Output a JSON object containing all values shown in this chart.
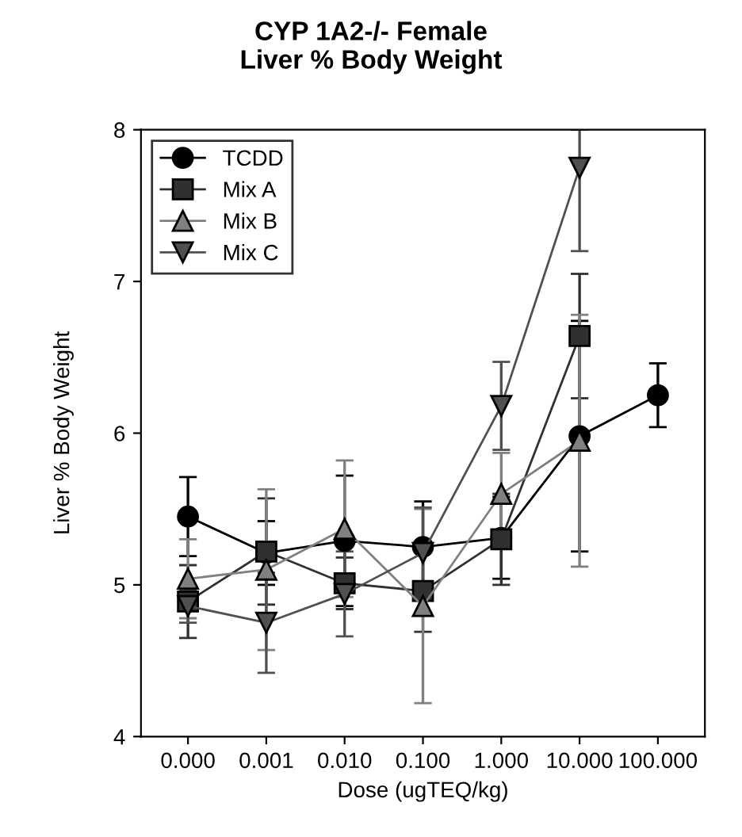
{
  "chart_data": {
    "type": "line",
    "title": "CYP 1A2-/- Female\nLiver % Body Weight",
    "xlabel": "Dose (ugTEQ/kg)",
    "ylabel": "Liver % Body Weight",
    "categories": [
      "0.000",
      "0.001",
      "0.010",
      "0.100",
      "1.000",
      "10.000",
      "100.000"
    ],
    "ylim": [
      4,
      8
    ],
    "yticks": [
      4,
      5,
      6,
      7,
      8
    ],
    "grid": false,
    "legend": "top left",
    "series": [
      {
        "name": "TCDD",
        "color": "#000000",
        "marker": "circle",
        "values": [
          5.45,
          5.21,
          5.29,
          5.25,
          5.31,
          5.98,
          6.25
        ],
        "errors": [
          0.26,
          0.21,
          0.43,
          0.3,
          0.27,
          0.76,
          0.21
        ]
      },
      {
        "name": "Mix A",
        "color": "#303030",
        "marker": "square",
        "values": [
          4.89,
          5.22,
          5.01,
          4.96,
          5.3,
          6.64,
          null
        ],
        "errors": [
          0.24,
          0.35,
          0.17,
          0.27,
          0.3,
          0.41,
          null
        ]
      },
      {
        "name": "Mix B",
        "color": "#808080",
        "marker": "triangle",
        "values": [
          5.04,
          5.1,
          5.37,
          4.86,
          5.6,
          5.95,
          null
        ],
        "errors": [
          0.26,
          0.53,
          0.45,
          0.64,
          0.27,
          0.83,
          null
        ]
      },
      {
        "name": "Mix C",
        "color": "#505050",
        "marker": "triangle_down",
        "values": [
          4.86,
          4.75,
          4.94,
          5.21,
          6.18,
          7.75,
          null
        ],
        "errors": [
          0.11,
          0.33,
          0.28,
          0.3,
          0.29,
          [
            7.2,
            8.0
          ],
          null
        ]
      }
    ]
  }
}
